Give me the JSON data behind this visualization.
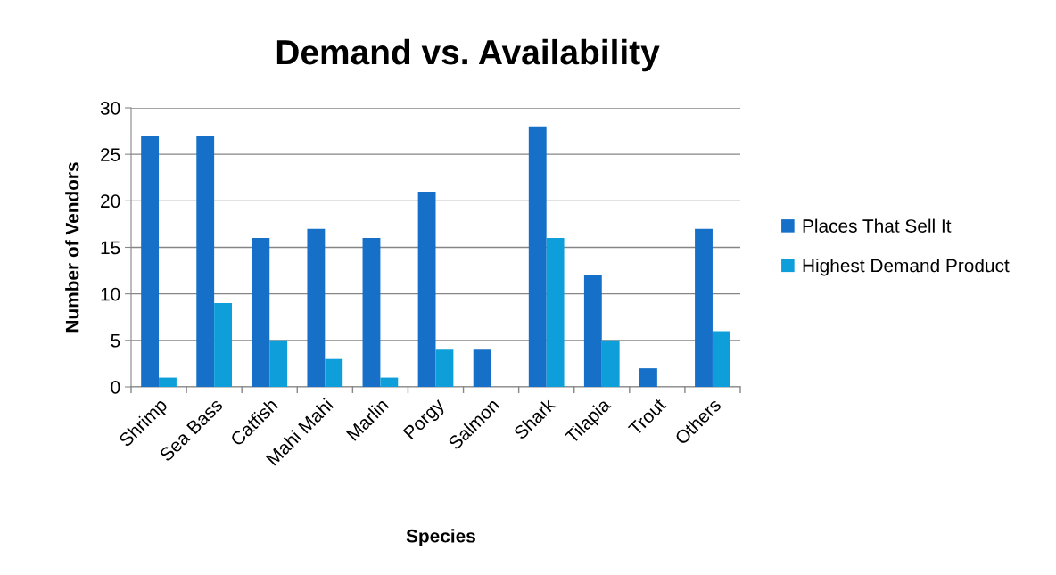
{
  "chart_data": {
    "type": "bar",
    "title": "Demand vs. Availability",
    "xlabel": "Species",
    "ylabel": "Number of Vendors",
    "categories": [
      "Shrimp",
      "Sea Bass",
      "Catfish",
      "Mahi Mahi",
      "Marlin",
      "Porgy",
      "Salmon",
      "Shark",
      "Tilapia",
      "Trout",
      "Others"
    ],
    "series": [
      {
        "name": "Places That Sell It",
        "color": "#1670c8",
        "values": [
          27,
          27,
          16,
          17,
          16,
          21,
          4,
          28,
          12,
          2,
          17
        ]
      },
      {
        "name": "Highest Demand Product",
        "color": "#0e9fda",
        "values": [
          1,
          9,
          5,
          3,
          1,
          4,
          0,
          16,
          5,
          0,
          6
        ]
      }
    ],
    "ylim": [
      0,
      30
    ],
    "yticks": [
      0,
      5,
      10,
      15,
      20,
      25,
      30
    ],
    "grid": "y",
    "legend": "right"
  }
}
